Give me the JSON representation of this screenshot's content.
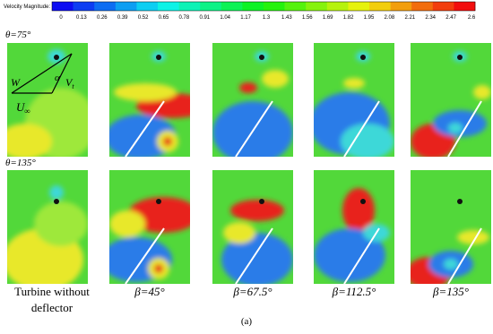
{
  "colorbar": {
    "label": "Velocity Magnitude:",
    "ticks": [
      0,
      0.13,
      0.26,
      0.39,
      0.52,
      0.65,
      0.78,
      0.91,
      1.04,
      1.17,
      1.3,
      1.43,
      1.56,
      1.69,
      1.82,
      1.95,
      2.08,
      2.21,
      2.34,
      2.47,
      2.6
    ]
  },
  "rows": [
    {
      "label": "θ=75°"
    },
    {
      "label": "θ=135°"
    }
  ],
  "columns": [
    {
      "caption": [
        "Turbine without",
        "deflector"
      ]
    },
    {
      "caption": [
        "β=45°"
      ]
    },
    {
      "caption": [
        "β=67.5°"
      ]
    },
    {
      "caption": [
        "β=112.5°"
      ]
    },
    {
      "caption": [
        "β=135°"
      ]
    }
  ],
  "vector_labels": {
    "w": "W",
    "alpha": "α",
    "vt": "V",
    "vt_sub": "t",
    "u": "U",
    "u_sub": "∞"
  },
  "figure_label": "(a)"
}
